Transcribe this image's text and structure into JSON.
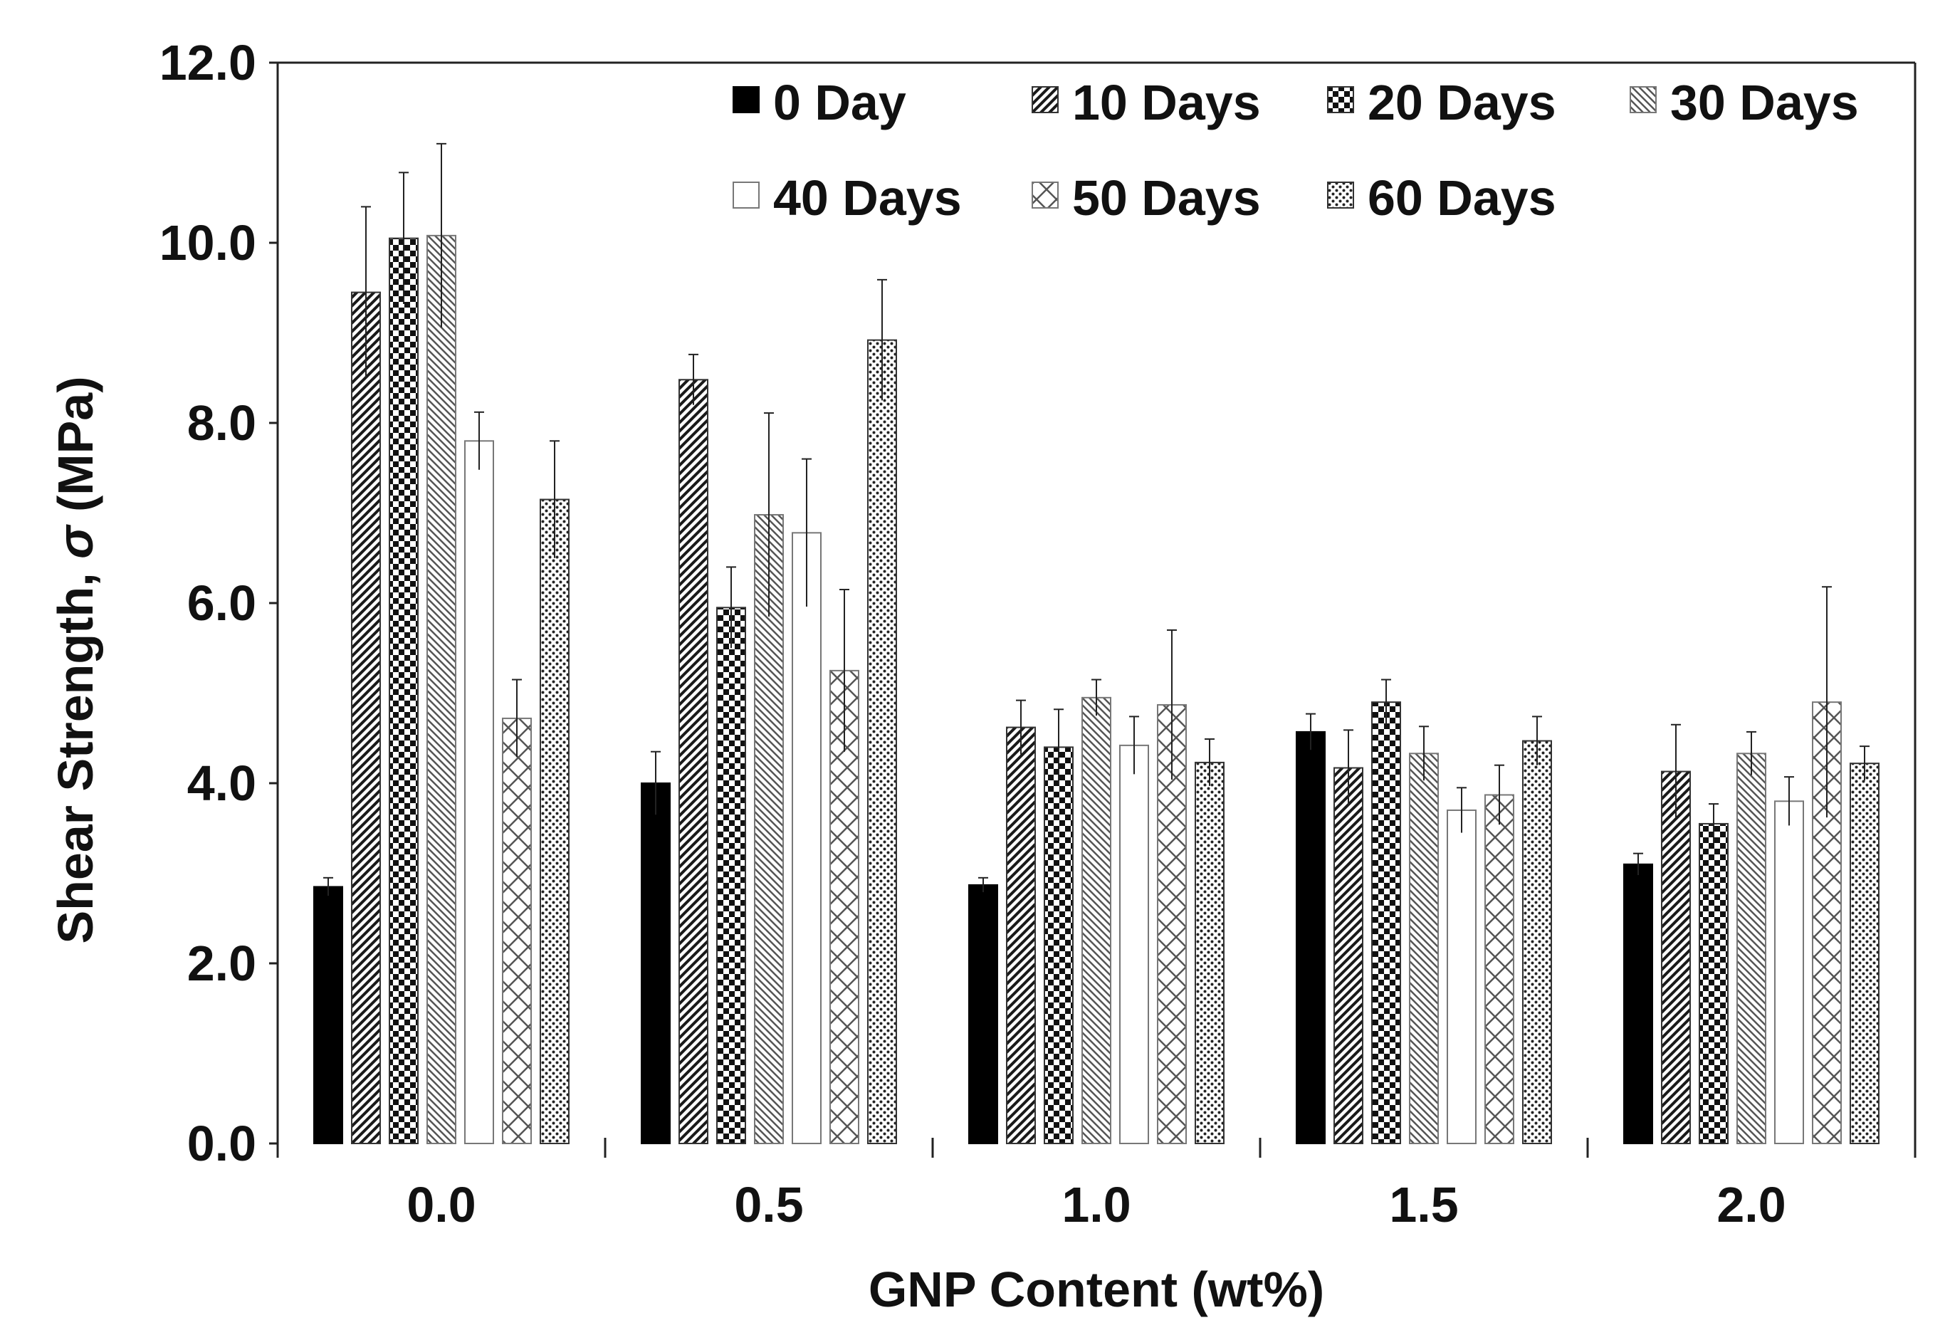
{
  "chart_data": {
    "type": "bar",
    "title": "",
    "xlabel": "GNP Content (wt%)",
    "ylabel": "Shear Strength, ",
    "ylabel_symbol": "σ",
    "ylabel_unit": " (MPa)",
    "ylim": [
      0,
      12
    ],
    "yticks": [
      "0.0",
      "2.0",
      "4.0",
      "6.0",
      "8.0",
      "10.0",
      "12.0"
    ],
    "categories": [
      "0.0",
      "0.5",
      "1.0",
      "1.5",
      "2.0"
    ],
    "grid": false,
    "legend_position": "top-right",
    "series": [
      {
        "name": "0 Day",
        "pattern": "solid",
        "values": [
          2.85,
          4.0,
          2.87,
          4.57,
          3.1
        ],
        "errors": [
          0.1,
          0.35,
          0.08,
          0.2,
          0.12
        ]
      },
      {
        "name": "10 Days",
        "pattern": "diagonal",
        "values": [
          9.45,
          8.48,
          4.62,
          4.17,
          4.13
        ],
        "errors": [
          0.95,
          0.28,
          0.3,
          0.42,
          0.52
        ]
      },
      {
        "name": "20 Days",
        "pattern": "checker",
        "values": [
          10.05,
          5.95,
          4.4,
          4.9,
          3.55
        ],
        "errors": [
          0.73,
          0.45,
          0.42,
          0.25,
          0.22
        ]
      },
      {
        "name": "30 Days",
        "pattern": "antidiagonal",
        "values": [
          10.08,
          6.98,
          4.95,
          4.33,
          4.33
        ],
        "errors": [
          1.02,
          1.13,
          0.2,
          0.3,
          0.24
        ]
      },
      {
        "name": "40 Days",
        "pattern": "hollow",
        "values": [
          7.8,
          6.78,
          4.42,
          3.7,
          3.8
        ],
        "errors": [
          0.32,
          0.82,
          0.32,
          0.25,
          0.27
        ]
      },
      {
        "name": "50 Days",
        "pattern": "crosshatch",
        "values": [
          4.72,
          5.25,
          4.87,
          3.87,
          4.9
        ],
        "errors": [
          0.43,
          0.9,
          0.83,
          0.33,
          1.28
        ]
      },
      {
        "name": "60 Days",
        "pattern": "dots",
        "values": [
          7.15,
          8.92,
          4.23,
          4.47,
          4.22
        ],
        "errors": [
          0.65,
          0.67,
          0.26,
          0.27,
          0.19
        ]
      }
    ]
  }
}
